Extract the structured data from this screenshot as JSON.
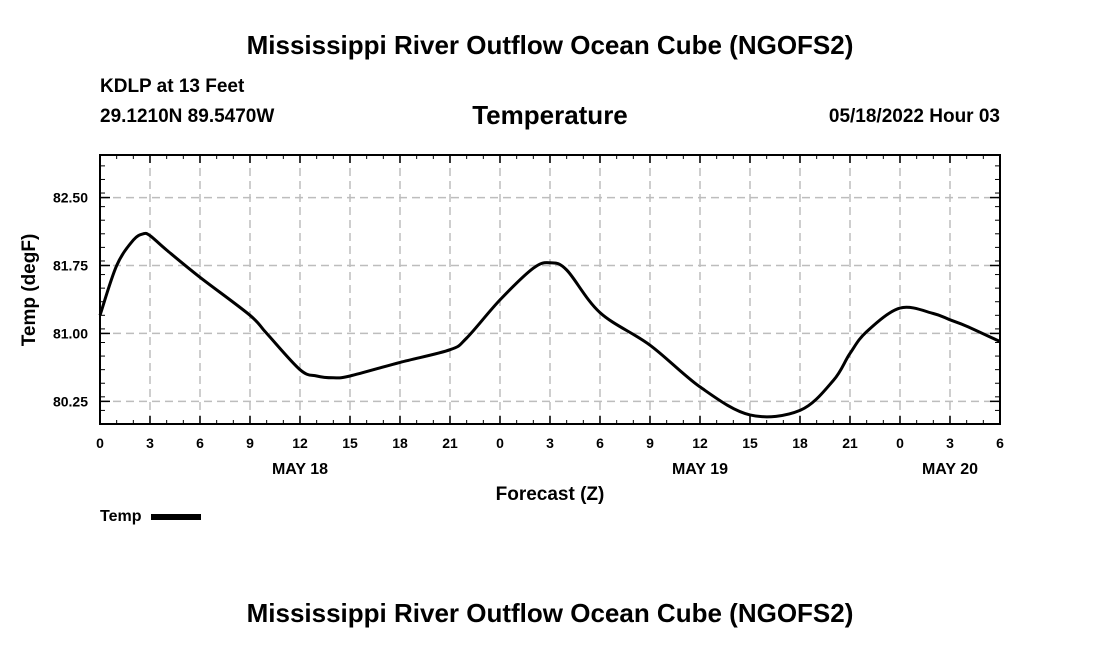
{
  "page": {
    "main_title": "Mississippi River Outflow Ocean Cube (NGOFS2)",
    "footer_title": "Mississippi River Outflow Ocean Cube (NGOFS2)"
  },
  "header": {
    "station": "KDLP at 13 Feet",
    "coords": "29.1210N  89.5470W",
    "datetime": "05/18/2022 Hour 03"
  },
  "chart_data": {
    "type": "line",
    "title": "Temperature",
    "xlabel": "Forecast (Z)",
    "ylabel": "Temp (degF)",
    "xlim": [
      0,
      54
    ],
    "ylim": [
      80.0,
      82.97
    ],
    "grid": true,
    "x_ticks": [
      0,
      3,
      6,
      9,
      12,
      15,
      18,
      21,
      24,
      27,
      30,
      33,
      36,
      39,
      42,
      45,
      48,
      51,
      54
    ],
    "x_tick_labels": [
      "0",
      "3",
      "6",
      "9",
      "12",
      "15",
      "18",
      "21",
      "0",
      "3",
      "6",
      "9",
      "12",
      "15",
      "18",
      "21",
      "0",
      "3",
      "6"
    ],
    "day_labels": [
      {
        "x": 12,
        "label": "MAY 18"
      },
      {
        "x": 36,
        "label": "MAY 19"
      },
      {
        "x": 51,
        "label": "MAY 20"
      }
    ],
    "y_ticks": [
      80.25,
      81.0,
      81.75,
      82.5
    ],
    "y_tick_labels": [
      "80.25",
      "81.00",
      "81.75",
      "82.50"
    ],
    "series": [
      {
        "name": "Temp",
        "x": [
          0,
          1,
          2,
          2.6,
          3,
          4,
          6,
          9,
          10,
          12,
          13,
          14,
          15,
          18,
          21,
          22,
          24,
          26,
          27,
          28,
          30,
          33,
          36,
          39,
          42,
          44,
          45,
          46,
          48,
          50,
          51,
          52,
          54
        ],
        "values": [
          81.2,
          81.75,
          82.03,
          82.1,
          82.08,
          81.92,
          81.62,
          81.2,
          81.0,
          80.6,
          80.53,
          80.51,
          80.53,
          80.68,
          80.82,
          80.95,
          81.37,
          81.72,
          81.78,
          81.7,
          81.23,
          80.87,
          80.41,
          80.1,
          80.15,
          80.48,
          80.78,
          81.02,
          81.28,
          81.22,
          81.15,
          81.08,
          80.91
        ]
      }
    ],
    "legend": {
      "label": "Temp",
      "position": "bottom-left"
    }
  }
}
